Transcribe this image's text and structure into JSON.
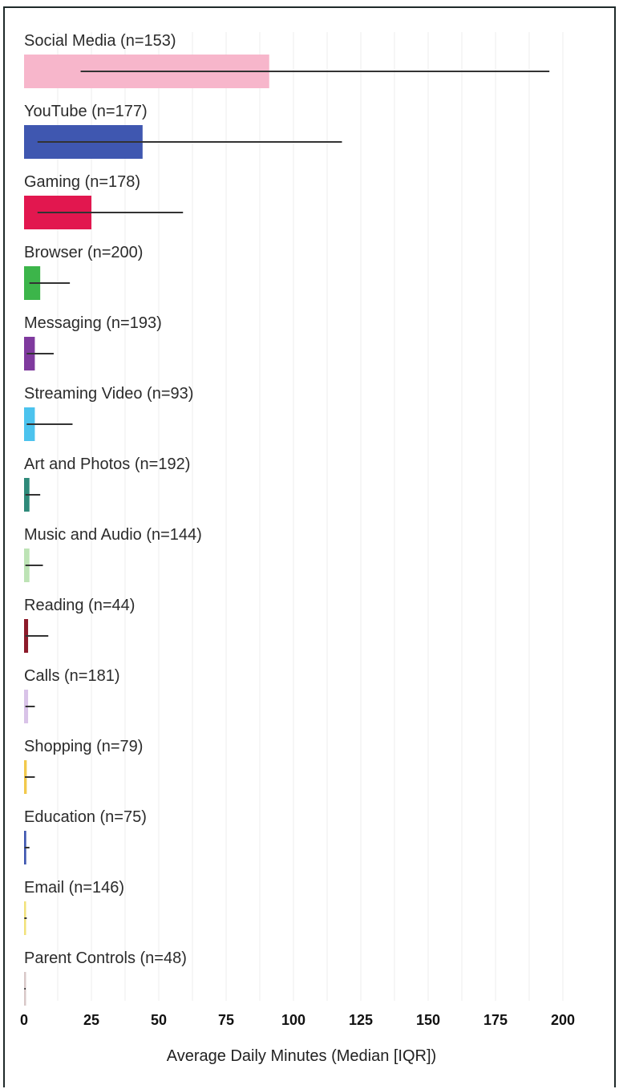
{
  "chart_data": {
    "type": "bar",
    "orientation": "horizontal",
    "title": "",
    "xlabel": "Average Daily Minutes (Median [IQR])",
    "ylabel": "",
    "xlim": [
      0,
      200
    ],
    "xticks": [
      "0",
      "25",
      "50",
      "75",
      "100",
      "125",
      "150",
      "175",
      "200"
    ],
    "grid": "vertical",
    "legend": "none",
    "categories": [
      {
        "label": "Social Media (n=153)",
        "median": 91,
        "iqr": [
          21,
          195
        ],
        "color": "#f7b6cb"
      },
      {
        "label": "YouTube (n=177)",
        "median": 44,
        "iqr": [
          5,
          118
        ],
        "color": "#3f57b0"
      },
      {
        "label": "Gaming (n=178)",
        "median": 25,
        "iqr": [
          5,
          59
        ],
        "color": "#e2174f"
      },
      {
        "label": "Browser (n=200)",
        "median": 6,
        "iqr": [
          2,
          17
        ],
        "color": "#3cb54a"
      },
      {
        "label": "Messaging (n=193)",
        "median": 4,
        "iqr": [
          1,
          11
        ],
        "color": "#7f3a9e"
      },
      {
        "label": "Streaming Video (n=93)",
        "median": 4,
        "iqr": [
          1,
          18
        ],
        "color": "#4cc3ee"
      },
      {
        "label": "Art and Photos (n=192)",
        "median": 2,
        "iqr": [
          0.5,
          6
        ],
        "color": "#2e8a7a"
      },
      {
        "label": "Music and Audio (n=144)",
        "median": 2,
        "iqr": [
          0.5,
          7
        ],
        "color": "#bde3b5"
      },
      {
        "label": "Reading (n=44)",
        "median": 1.5,
        "iqr": [
          0.5,
          9
        ],
        "color": "#8c1a2a"
      },
      {
        "label": "Calls (n=181)",
        "median": 1.5,
        "iqr": [
          0.5,
          4
        ],
        "color": "#d9c3e8"
      },
      {
        "label": "Shopping (n=79)",
        "median": 1,
        "iqr": [
          0.3,
          4
        ],
        "color": "#f2c94c"
      },
      {
        "label": "Education (n=75)",
        "median": 0.8,
        "iqr": [
          0.2,
          2
        ],
        "color": "#3f57b0"
      },
      {
        "label": "Email (n=146)",
        "median": 0.5,
        "iqr": [
          0.1,
          1
        ],
        "color": "#f1e27a"
      },
      {
        "label": "Parent Controls (n=48)",
        "median": 0.3,
        "iqr": [
          0.1,
          0.6
        ],
        "color": "#d8c8c8"
      }
    ]
  }
}
